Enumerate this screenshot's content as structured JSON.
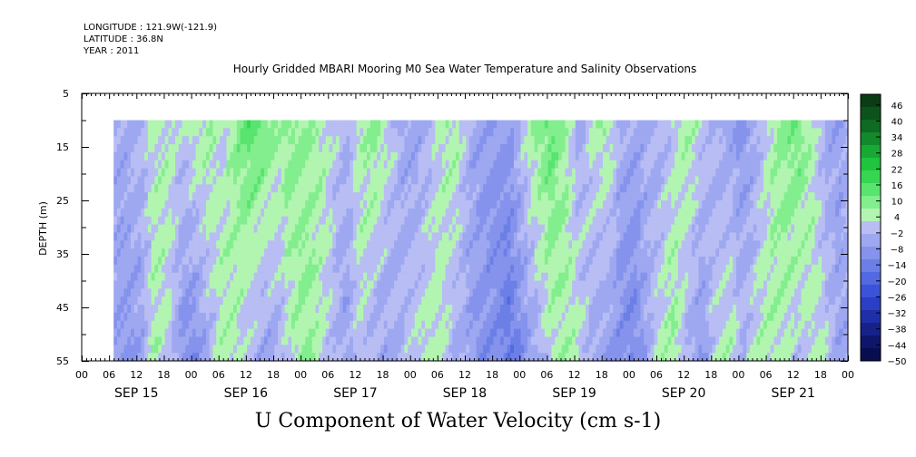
{
  "header": {
    "longitude_label": "LONGITUDE : 121.9W(-121.9)",
    "latitude_label": "LATITUDE : 36.8N",
    "year_label": "YEAR : 2011"
  },
  "chart_data": {
    "type": "heatmap",
    "title": "Hourly Gridded MBARI Mooring M0 Sea Water Temperature and Salinity Observations",
    "xlabel": "U Component of Water Velocity (cm s-1)",
    "ylabel": "DEPTH (m)",
    "y_axis": {
      "min": 5,
      "max": 55,
      "inverted": true,
      "ticks": [
        5,
        15,
        25,
        35,
        45,
        55
      ]
    },
    "x_axis": {
      "unit": "hours",
      "start": "2011-09-15 00:00",
      "end": "2011-09-22 00:00",
      "hour_ticks": [
        "00",
        "06",
        "12",
        "18",
        "00",
        "06",
        "12",
        "18",
        "00",
        "06",
        "12",
        "18",
        "00",
        "06",
        "12",
        "18",
        "00",
        "06",
        "12",
        "18",
        "00",
        "06",
        "12",
        "18",
        "00",
        "06",
        "12",
        "18",
        "00"
      ],
      "day_labels": [
        "SEP 15",
        "SEP 16",
        "SEP 17",
        "SEP 18",
        "SEP 19",
        "SEP 20",
        "SEP 21"
      ]
    },
    "data_extent": {
      "time_start_hour": 7,
      "time_end_hour": 168,
      "depth_min": 10,
      "depth_max": 55
    },
    "colorbar": {
      "min": -50,
      "max": 50,
      "tick_labels": [
        "46",
        "40",
        "34",
        "28",
        "22",
        "16",
        "10",
        "4",
        "-2",
        "-8",
        "-14",
        "-20",
        "-26",
        "-32",
        "-38",
        "-44",
        "-50"
      ],
      "colors": [
        "#0a3d14",
        "#0c531b",
        "#0f6a22",
        "#128a2b",
        "#16aa34",
        "#1fc43f",
        "#36d653",
        "#58e46e",
        "#82ee8e",
        "#b2f5b0",
        "#b8bdf4",
        "#9ea8f1",
        "#8593ec",
        "#6c7fe7",
        "#5269e1",
        "#3b53d8",
        "#2a3fc5",
        "#1f2fa8",
        "#16228a",
        "#0e166c",
        "#080d50"
      ]
    },
    "columns": [
      {
        "t": 7,
        "top": -4,
        "bottom": -6
      },
      {
        "t": 10,
        "top": -3,
        "bottom": -8
      },
      {
        "t": 13,
        "top": -2,
        "bottom": -6
      },
      {
        "t": 16,
        "top": 3,
        "bottom": 6
      },
      {
        "t": 19,
        "top": 4,
        "bottom": 2
      },
      {
        "t": 22,
        "top": 2,
        "bottom": -9
      },
      {
        "t": 25,
        "top": 5,
        "bottom": -10
      },
      {
        "t": 28,
        "top": 7,
        "bottom": -3
      },
      {
        "t": 31,
        "top": 2,
        "bottom": 6
      },
      {
        "t": 34,
        "top": 9,
        "bottom": 4
      },
      {
        "t": 37,
        "top": 14,
        "bottom": -2
      },
      {
        "t": 40,
        "top": 12,
        "bottom": -6
      },
      {
        "t": 43,
        "top": 6,
        "bottom": -4
      },
      {
        "t": 46,
        "top": 10,
        "bottom": 3
      },
      {
        "t": 49,
        "top": 7,
        "bottom": 8
      },
      {
        "t": 52,
        "top": 6,
        "bottom": 4
      },
      {
        "t": 55,
        "top": 2,
        "bottom": -1
      },
      {
        "t": 58,
        "top": -3,
        "bottom": -6
      },
      {
        "t": 61,
        "top": 5,
        "bottom": 2
      },
      {
        "t": 64,
        "top": 8,
        "bottom": -4
      },
      {
        "t": 67,
        "top": 4,
        "bottom": -5
      },
      {
        "t": 70,
        "top": -4,
        "bottom": -2
      },
      {
        "t": 73,
        "top": -6,
        "bottom": 2
      },
      {
        "t": 76,
        "top": -3,
        "bottom": 5
      },
      {
        "t": 79,
        "top": 4,
        "bottom": 3
      },
      {
        "t": 82,
        "top": 6,
        "bottom": -3
      },
      {
        "t": 85,
        "top": -3,
        "bottom": -6
      },
      {
        "t": 88,
        "top": -5,
        "bottom": -10
      },
      {
        "t": 91,
        "top": -8,
        "bottom": -12
      },
      {
        "t": 94,
        "top": -6,
        "bottom": -16
      },
      {
        "t": 97,
        "top": 2,
        "bottom": -9
      },
      {
        "t": 100,
        "top": 9,
        "bottom": -4
      },
      {
        "t": 103,
        "top": 13,
        "bottom": 3
      },
      {
        "t": 106,
        "top": 6,
        "bottom": 6
      },
      {
        "t": 109,
        "top": -4,
        "bottom": 4
      },
      {
        "t": 112,
        "top": 3,
        "bottom": -4
      },
      {
        "t": 115,
        "top": 7,
        "bottom": -6
      },
      {
        "t": 118,
        "top": -2,
        "bottom": -10
      },
      {
        "t": 121,
        "top": -5,
        "bottom": -12
      },
      {
        "t": 124,
        "top": -3,
        "bottom": -4
      },
      {
        "t": 127,
        "top": -4,
        "bottom": 5
      },
      {
        "t": 130,
        "top": 2,
        "bottom": 7
      },
      {
        "t": 133,
        "top": 6,
        "bottom": -3
      },
      {
        "t": 136,
        "top": 2,
        "bottom": -9
      },
      {
        "t": 139,
        "top": -4,
        "bottom": 3
      },
      {
        "t": 142,
        "top": -6,
        "bottom": 6
      },
      {
        "t": 145,
        "top": -8,
        "bottom": -2
      },
      {
        "t": 148,
        "top": -4,
        "bottom": 4
      },
      {
        "t": 151,
        "top": 4,
        "bottom": 6
      },
      {
        "t": 154,
        "top": 9,
        "bottom": 3
      },
      {
        "t": 157,
        "top": 12,
        "bottom": -2
      },
      {
        "t": 160,
        "top": 5,
        "bottom": 4
      },
      {
        "t": 163,
        "top": -4,
        "bottom": 2
      },
      {
        "t": 166,
        "top": -6,
        "bottom": -5
      },
      {
        "t": 168,
        "top": -3,
        "bottom": -4
      }
    ]
  }
}
